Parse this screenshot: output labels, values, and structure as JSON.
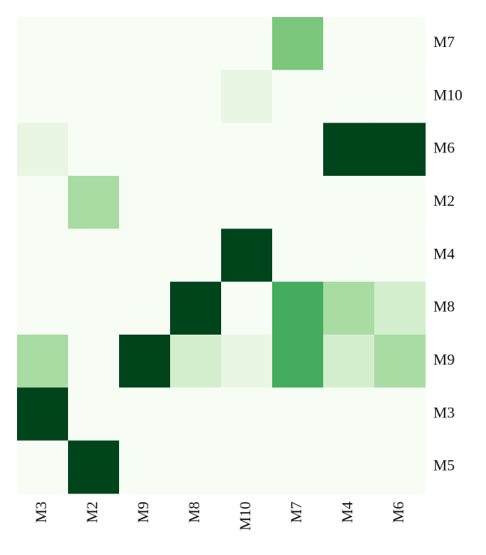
{
  "chart_data": {
    "type": "heatmap",
    "x": [
      "M3",
      "M2",
      "M9",
      "M8",
      "M10",
      "M7",
      "M4",
      "M6"
    ],
    "y": [
      "M7",
      "M10",
      "M6",
      "M2",
      "M4",
      "M8",
      "M9",
      "M3",
      "M5"
    ],
    "z": [
      [
        0,
        0,
        0,
        0,
        0,
        0.48,
        0,
        0
      ],
      [
        0,
        0,
        0,
        0,
        0.1,
        0,
        0,
        0
      ],
      [
        0.1,
        0,
        0,
        0,
        0,
        0,
        1,
        1
      ],
      [
        0,
        0.35,
        0,
        0,
        0,
        0,
        0,
        0
      ],
      [
        0,
        0,
        0,
        0,
        1,
        0,
        0,
        0
      ],
      [
        0,
        0,
        0,
        1,
        0,
        0.62,
        0.35,
        0.2
      ],
      [
        0.35,
        0,
        1,
        0.2,
        0.1,
        0.62,
        0.2,
        0.35
      ],
      [
        1,
        0,
        0,
        0,
        0,
        0,
        0,
        0
      ],
      [
        0,
        1,
        0,
        0,
        0,
        0,
        0,
        0
      ]
    ],
    "zlim": [
      0,
      1
    ],
    "colormap": [
      "#f7fcf5",
      "#e5f5e0",
      "#c7e9c0",
      "#a1d99b",
      "#74c476",
      "#41ab5d",
      "#238b45",
      "#006d2c",
      "#00441b"
    ]
  }
}
